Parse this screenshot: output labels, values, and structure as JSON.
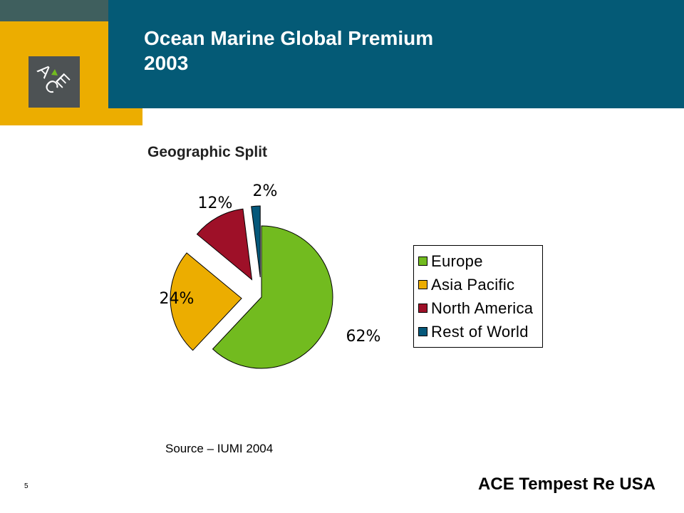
{
  "header": {
    "title_line1": "Ocean Marine Global Premium",
    "title_line2": "2003",
    "logo_text": "ACE"
  },
  "chart_data": {
    "type": "pie",
    "title": "Geographic Split",
    "categories": [
      "Europe",
      "Asia Pacific",
      "North America",
      "Rest of World"
    ],
    "values": [
      62,
      24,
      12,
      2
    ],
    "value_labels": [
      "62%",
      "24%",
      "12%",
      "2%"
    ],
    "colors": [
      "#72bb1f",
      "#ecad00",
      "#9e1028",
      "#05587a"
    ],
    "exploded": true,
    "legend_position": "right"
  },
  "footer": {
    "source": "Source – IUMI 2004",
    "page_number": "5",
    "brand": "ACE Tempest Re USA"
  }
}
